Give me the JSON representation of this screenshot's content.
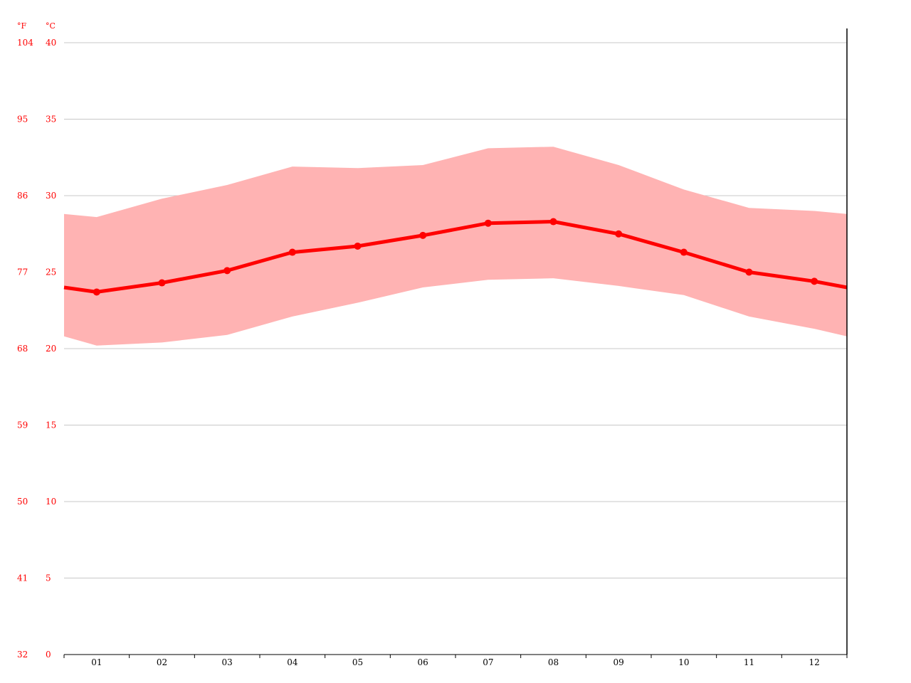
{
  "chart_data": {
    "type": "line",
    "x_categories": [
      "01",
      "02",
      "03",
      "04",
      "05",
      "06",
      "07",
      "08",
      "09",
      "10",
      "11",
      "12"
    ],
    "units": {
      "fahrenheit": "°F",
      "celsius": "°C"
    },
    "y_ticks_c": [
      "0",
      "5",
      "10",
      "15",
      "20",
      "25",
      "30",
      "35",
      "40"
    ],
    "y_ticks_f": [
      "32",
      "41",
      "50",
      "59",
      "68",
      "77",
      "86",
      "95",
      "104"
    ],
    "ylim": [
      0,
      40
    ],
    "grid": true,
    "series": [
      {
        "role": "mean",
        "values": [
          23.7,
          24.3,
          25.1,
          26.3,
          26.7,
          27.4,
          28.2,
          28.3,
          27.5,
          26.3,
          25.0,
          24.4
        ]
      },
      {
        "role": "max",
        "values": [
          28.6,
          29.8,
          30.7,
          31.9,
          31.8,
          32.0,
          33.1,
          33.2,
          32.0,
          30.4,
          29.2,
          29.0
        ]
      },
      {
        "role": "min",
        "values": [
          20.2,
          20.4,
          20.9,
          22.1,
          23.0,
          24.0,
          24.5,
          24.6,
          24.1,
          23.5,
          22.1,
          21.3
        ]
      }
    ],
    "edge_values": {
      "mean": [
        24.0,
        24.0
      ],
      "max": [
        28.8,
        28.8
      ],
      "min": [
        20.8,
        20.8
      ]
    },
    "colors": {
      "line": "#ff0000",
      "band": "#ffb3b3",
      "grid": "#c8c8c8",
      "axis_label": "#ff0000",
      "x_label": "#000000"
    }
  }
}
